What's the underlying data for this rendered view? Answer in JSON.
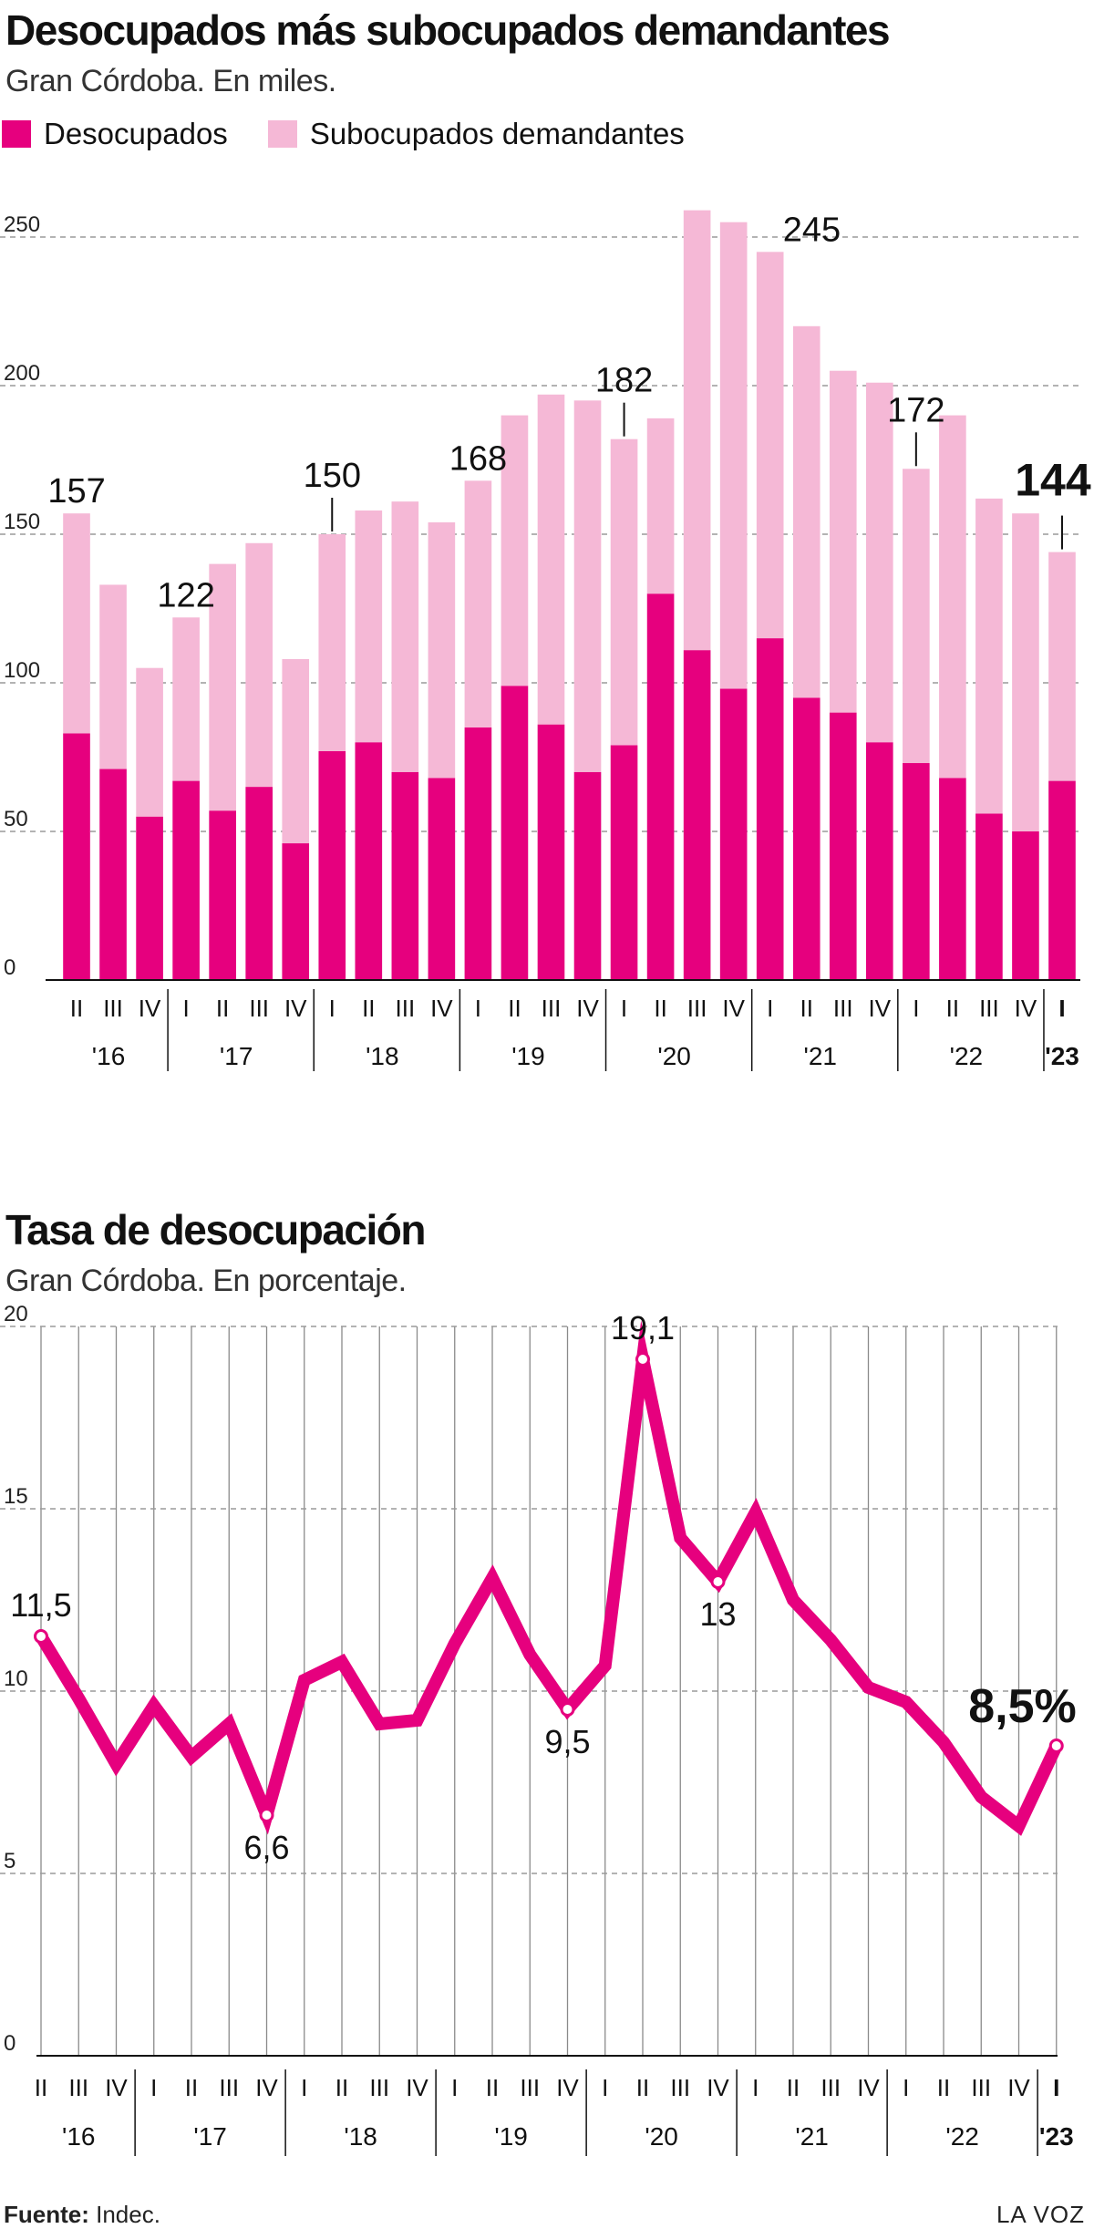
{
  "chart_data": [
    {
      "type": "bar",
      "stacked": true,
      "title": "Desocupados más subocupados demandantes",
      "subtitle": "Gran Córdoba. En miles.",
      "categories": [
        "II",
        "III",
        "IV",
        "I",
        "II",
        "III",
        "IV",
        "I",
        "II",
        "III",
        "IV",
        "I",
        "II",
        "III",
        "IV",
        "I",
        "II",
        "III",
        "IV",
        "I",
        "II",
        "III",
        "IV",
        "I",
        "II",
        "III",
        "IV",
        "I"
      ],
      "year_groups": [
        {
          "label": "'16",
          "count": 3
        },
        {
          "label": "'17",
          "count": 4
        },
        {
          "label": "'18",
          "count": 4
        },
        {
          "label": "'19",
          "count": 4
        },
        {
          "label": "'20",
          "count": 4
        },
        {
          "label": "'21",
          "count": 4
        },
        {
          "label": "'22",
          "count": 4
        },
        {
          "label": "'23",
          "count": 1,
          "bold": true
        }
      ],
      "series": [
        {
          "name": "Desocupados",
          "color": "#e6007e",
          "values": [
            83,
            71,
            55,
            67,
            57,
            65,
            46,
            77,
            80,
            70,
            68,
            85,
            99,
            86,
            70,
            79,
            130,
            111,
            98,
            115,
            95,
            90,
            80,
            73,
            68,
            56,
            50,
            67
          ]
        },
        {
          "name": "Subocupados demandantes",
          "color": "#f5b8d6",
          "values": [
            74,
            62,
            50,
            55,
            83,
            82,
            62,
            73,
            78,
            91,
            86,
            83,
            91,
            111,
            125,
            103,
            59,
            148,
            157,
            130,
            125,
            115,
            121,
            99,
            122,
            106,
            107,
            77
          ]
        }
      ],
      "totals": [
        157,
        133,
        105,
        122,
        140,
        147,
        108,
        150,
        158,
        161,
        154,
        168,
        190,
        197,
        195,
        182,
        189,
        259,
        255,
        245,
        220,
        205,
        201,
        172,
        190,
        162,
        157,
        144
      ],
      "annotations": [
        {
          "index": 0,
          "label": "157"
        },
        {
          "index": 3,
          "label": "122"
        },
        {
          "index": 7,
          "label": "150",
          "leader": true
        },
        {
          "index": 11,
          "label": "168"
        },
        {
          "index": 15,
          "label": "182",
          "leader": true
        },
        {
          "index": 19,
          "label": "245",
          "side": "right"
        },
        {
          "index": 23,
          "label": "172",
          "leader": true
        },
        {
          "index": 27,
          "label": "144",
          "leader": true,
          "bold": true
        }
      ],
      "ylim": [
        0,
        260
      ],
      "yticks": [
        0,
        50,
        100,
        150,
        200,
        250
      ],
      "grid": true,
      "legend": "top-left"
    },
    {
      "type": "line",
      "title": "Tasa de desocupación",
      "subtitle": "Gran Córdoba. En porcentaje.",
      "categories": [
        "II",
        "III",
        "IV",
        "I",
        "II",
        "III",
        "IV",
        "I",
        "II",
        "III",
        "IV",
        "I",
        "II",
        "III",
        "IV",
        "I",
        "II",
        "III",
        "IV",
        "I",
        "II",
        "III",
        "IV",
        "I",
        "II",
        "III",
        "IV",
        "I"
      ],
      "year_groups": [
        {
          "label": "'16",
          "count": 3
        },
        {
          "label": "'17",
          "count": 4
        },
        {
          "label": "'18",
          "count": 4
        },
        {
          "label": "'19",
          "count": 4
        },
        {
          "label": "'20",
          "count": 4
        },
        {
          "label": "'21",
          "count": 4
        },
        {
          "label": "'22",
          "count": 4
        },
        {
          "label": "'23",
          "count": 1,
          "bold": true
        }
      ],
      "series": [
        {
          "name": "",
          "color": "#e6007e",
          "values": [
            11.5,
            9.8,
            8.0,
            9.6,
            8.2,
            9.1,
            6.6,
            10.3,
            10.8,
            9.1,
            9.2,
            11.3,
            13.1,
            11.0,
            9.5,
            10.7,
            19.1,
            14.2,
            13.0,
            14.9,
            12.5,
            11.4,
            10.1,
            9.7,
            8.6,
            7.1,
            6.3,
            8.5
          ]
        }
      ],
      "annotations": [
        {
          "index": 0,
          "label": "11,5",
          "pos": "above"
        },
        {
          "index": 6,
          "label": "6,6",
          "pos": "below"
        },
        {
          "index": 14,
          "label": "9,5",
          "pos": "below"
        },
        {
          "index": 16,
          "label": "19,1",
          "pos": "above"
        },
        {
          "index": 18,
          "label": "13",
          "pos": "below"
        },
        {
          "index": 27,
          "label": "8,5%",
          "pos": "above-left",
          "bold": true
        }
      ],
      "ylim": [
        0,
        20
      ],
      "yticks": [
        0,
        5,
        10,
        15,
        20
      ],
      "grid": true
    }
  ],
  "footer": {
    "source_label": "Fuente:",
    "source_value": " Indec.",
    "brand": "LA VOZ"
  }
}
